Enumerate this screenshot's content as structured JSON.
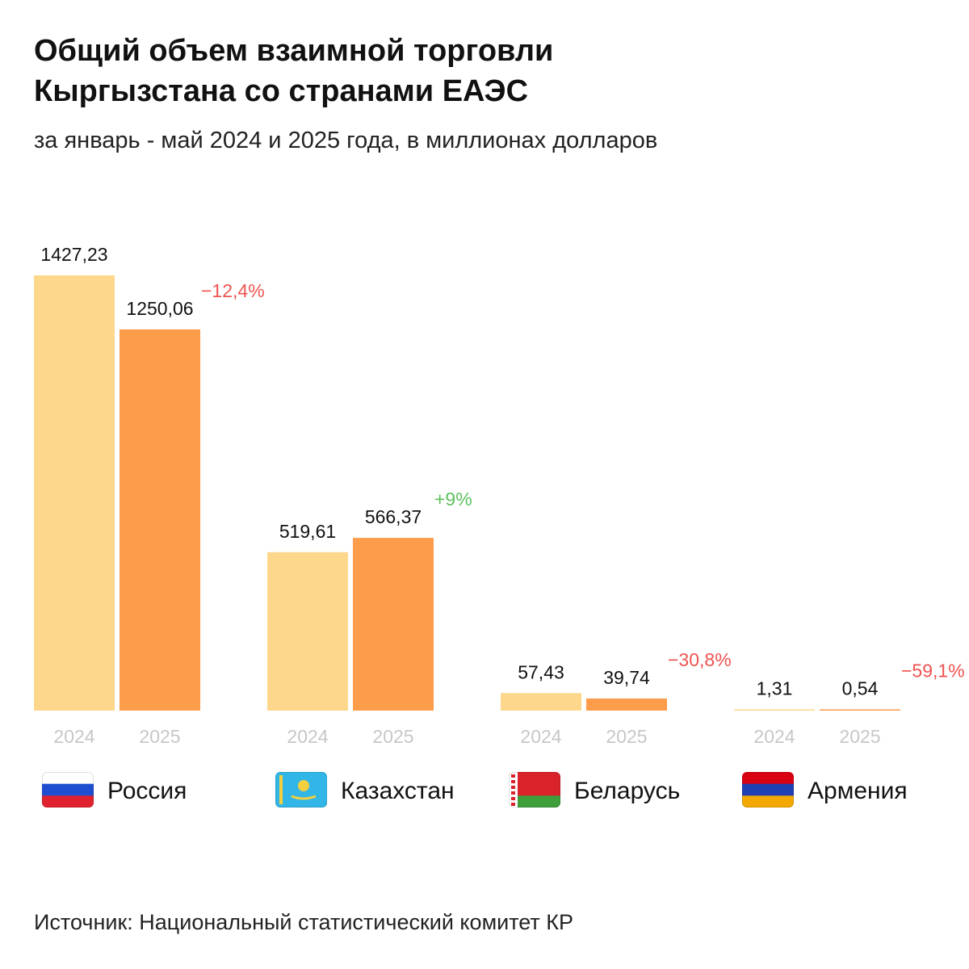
{
  "header": {
    "title_line1": "Общий объем взаимной торговли",
    "title_line2": "Кыргызстана со странами ЕАЭС",
    "subtitle": "за январь - май 2024 и 2025 года, в миллионах долларов"
  },
  "footer": {
    "source": "Источник: Национальный статистический комитет КР"
  },
  "colors": {
    "bar_2024": "#fdd78b",
    "bar_2025": "#fd9c4a",
    "negative": "#ef5350",
    "positive": "#5dc15d",
    "year_label": "#c7c7c7"
  },
  "chart_data": {
    "type": "bar",
    "title": "Общий объем взаимной торговли Кыргызстана со странами ЕАЭС",
    "subtitle": "за январь - май 2024 и 2025 года, в миллионах долларов",
    "categories": [
      "Россия",
      "Казахстан",
      "Беларусь",
      "Армения"
    ],
    "series": [
      {
        "name": "2024",
        "values": [
          1427.23,
          519.61,
          57.43,
          1.31
        ],
        "labels": [
          "1427,23",
          "519,61",
          "57,43",
          "1,31"
        ]
      },
      {
        "name": "2025",
        "values": [
          1250.06,
          566.37,
          39.74,
          0.54
        ],
        "labels": [
          "1250,06",
          "566,37",
          "39,74",
          "0,54"
        ]
      }
    ],
    "changes": [
      {
        "label": "−12,4%",
        "sign": "negative"
      },
      {
        "label": "+9%",
        "sign": "positive"
      },
      {
        "label": "−30,8%",
        "sign": "negative"
      },
      {
        "label": "−59,1%",
        "sign": "negative"
      }
    ],
    "flags": [
      {
        "icon": "russia-flag-icon",
        "stripes": [
          "#ffffff",
          "#1f4fd1",
          "#e0222f"
        ]
      },
      {
        "icon": "kazakhstan-flag-icon",
        "stripes": [
          "#31b6e7"
        ]
      },
      {
        "icon": "belarus-flag-icon",
        "stripes": [
          "#d9222a",
          "#d9222a",
          "#3e9e3a"
        ]
      },
      {
        "icon": "armenia-flag-icon",
        "stripes": [
          "#d90012",
          "#1f3fb5",
          "#f2a800"
        ]
      }
    ],
    "xlabel": "",
    "ylabel": "",
    "ylim": [
      0,
      1427.23
    ],
    "grid": false,
    "legend": "none"
  }
}
